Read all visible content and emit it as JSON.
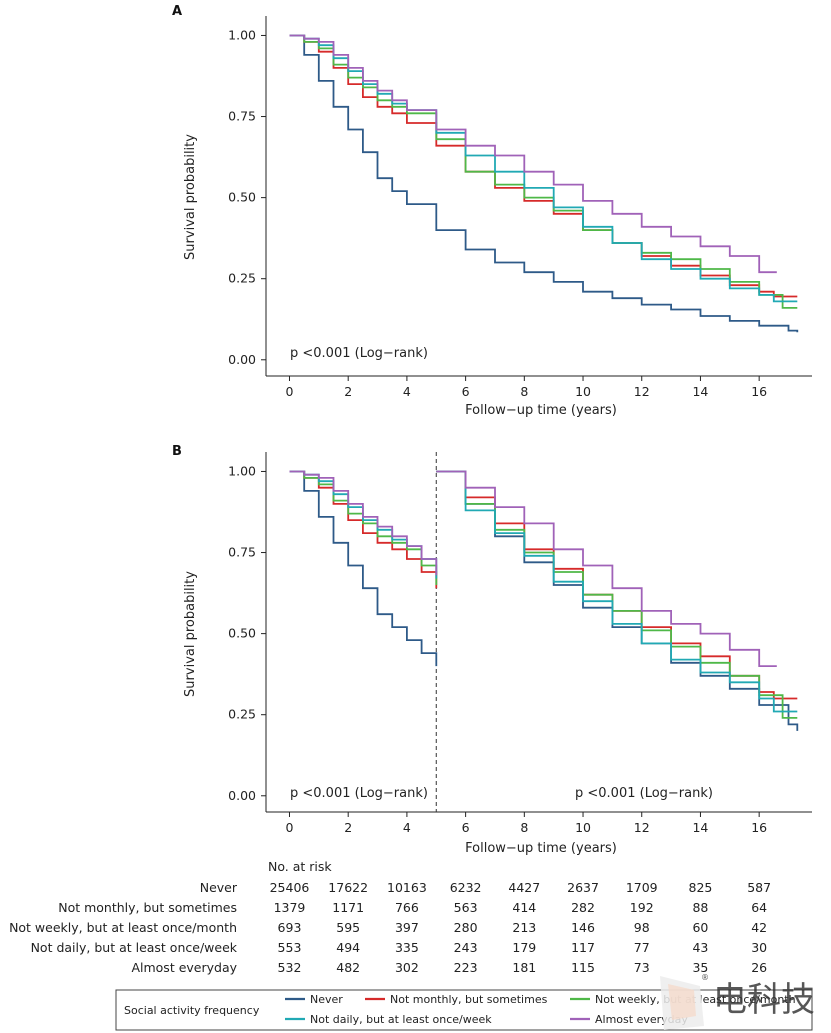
{
  "chart_data": [
    {
      "panel": "A",
      "type": "line",
      "xlabel": "Follow−up time (years)",
      "ylabel": "Survival probability",
      "xticks": [
        "0",
        "2",
        "4",
        "6",
        "8",
        "10",
        "12",
        "14",
        "16"
      ],
      "yticks": [
        "0.00",
        "0.25",
        "0.50",
        "0.75",
        "1.00"
      ],
      "xlim": [
        -0.8,
        17.8
      ],
      "ylim": [
        -0.05,
        1.06
      ],
      "annotation": "p <0.001 (Log−rank)",
      "series": [
        {
          "name": "Never",
          "color": "#2e5a88",
          "x": [
            0,
            0.5,
            1,
            1.5,
            2,
            2.5,
            3,
            3.5,
            4,
            5,
            6,
            7,
            8,
            9,
            10,
            11,
            12,
            13,
            14,
            15,
            16,
            17,
            17.3
          ],
          "y": [
            1.0,
            0.94,
            0.86,
            0.78,
            0.71,
            0.64,
            0.56,
            0.52,
            0.48,
            0.4,
            0.34,
            0.3,
            0.27,
            0.24,
            0.21,
            0.19,
            0.17,
            0.155,
            0.135,
            0.12,
            0.105,
            0.09,
            0.085
          ]
        },
        {
          "name": "Not monthly, but sometimes",
          "color": "#d62a2a",
          "x": [
            0,
            0.5,
            1,
            1.5,
            2,
            2.5,
            3,
            3.5,
            4,
            5,
            6,
            7,
            8,
            9,
            10,
            11,
            12,
            13,
            14,
            15,
            16,
            16.5,
            17.3
          ],
          "y": [
            1.0,
            0.98,
            0.95,
            0.9,
            0.85,
            0.81,
            0.78,
            0.76,
            0.73,
            0.66,
            0.58,
            0.53,
            0.49,
            0.45,
            0.4,
            0.36,
            0.32,
            0.29,
            0.26,
            0.23,
            0.21,
            0.195,
            0.195
          ]
        },
        {
          "name": "Not weekly, but at least once/month",
          "color": "#4fb848",
          "x": [
            0,
            0.5,
            1,
            1.5,
            2,
            2.5,
            3,
            3.5,
            4,
            5,
            6,
            7,
            8,
            9,
            10,
            11,
            12,
            13,
            14,
            15,
            16,
            16.8,
            17.3
          ],
          "y": [
            1.0,
            0.98,
            0.96,
            0.91,
            0.87,
            0.84,
            0.8,
            0.78,
            0.76,
            0.68,
            0.58,
            0.54,
            0.5,
            0.46,
            0.4,
            0.36,
            0.33,
            0.31,
            0.28,
            0.24,
            0.2,
            0.16,
            0.16
          ]
        },
        {
          "name": "Not daily, but at least once/week",
          "color": "#21a9b4",
          "x": [
            0,
            0.5,
            1,
            1.5,
            2,
            2.5,
            3,
            3.5,
            4,
            5,
            6,
            7,
            8,
            9,
            10,
            11,
            12,
            13,
            14,
            15,
            16,
            16.5,
            17.3
          ],
          "y": [
            1.0,
            0.99,
            0.97,
            0.93,
            0.89,
            0.85,
            0.82,
            0.79,
            0.77,
            0.7,
            0.63,
            0.58,
            0.53,
            0.47,
            0.41,
            0.36,
            0.31,
            0.28,
            0.25,
            0.22,
            0.2,
            0.18,
            0.18
          ]
        },
        {
          "name": "Almost everyday",
          "color": "#a062b8",
          "x": [
            0,
            0.5,
            1,
            1.5,
            2,
            2.5,
            3,
            3.5,
            4,
            5,
            6,
            7,
            8,
            9,
            10,
            11,
            12,
            13,
            14,
            15,
            16,
            16.6
          ],
          "y": [
            1.0,
            0.99,
            0.98,
            0.94,
            0.9,
            0.86,
            0.83,
            0.8,
            0.77,
            0.71,
            0.66,
            0.63,
            0.58,
            0.54,
            0.49,
            0.45,
            0.41,
            0.38,
            0.35,
            0.32,
            0.27,
            0.27
          ]
        }
      ]
    },
    {
      "panel": "B",
      "type": "line",
      "xlabel": "Follow−up time (years)",
      "ylabel": "Survival probability",
      "xticks": [
        "0",
        "2",
        "4",
        "6",
        "8",
        "10",
        "12",
        "14",
        "16"
      ],
      "yticks": [
        "0.00",
        "0.25",
        "0.50",
        "0.75",
        "1.00"
      ],
      "xlim": [
        -0.8,
        17.8
      ],
      "ylim": [
        -0.05,
        1.06
      ],
      "cut_x": 5,
      "annotations": [
        "p <0.001 (Log−rank)",
        "p <0.001 (Log−rank)"
      ],
      "series": [
        {
          "name": "Never",
          "color": "#2e5a88",
          "seg1": {
            "x": [
              0,
              0.5,
              1,
              1.5,
              2,
              2.5,
              3,
              3.5,
              4,
              4.5,
              5
            ],
            "y": [
              1.0,
              0.94,
              0.86,
              0.78,
              0.71,
              0.64,
              0.56,
              0.52,
              0.48,
              0.44,
              0.4
            ]
          },
          "seg2": {
            "x": [
              5,
              6,
              7,
              8,
              9,
              10,
              11,
              12,
              13,
              14,
              15,
              16,
              17,
              17.3
            ],
            "y": [
              1.0,
              0.9,
              0.8,
              0.72,
              0.65,
              0.58,
              0.52,
              0.47,
              0.41,
              0.37,
              0.33,
              0.28,
              0.22,
              0.2
            ]
          }
        },
        {
          "name": "Not monthly, but sometimes",
          "color": "#d62a2a",
          "seg1": {
            "x": [
              0,
              0.5,
              1,
              1.5,
              2,
              2.5,
              3,
              3.5,
              4,
              4.5,
              5
            ],
            "y": [
              1.0,
              0.98,
              0.95,
              0.9,
              0.85,
              0.81,
              0.78,
              0.76,
              0.73,
              0.69,
              0.64
            ]
          },
          "seg2": {
            "x": [
              5,
              6,
              7,
              8,
              9,
              10,
              11,
              12,
              13,
              14,
              15,
              16,
              16.5,
              17.3
            ],
            "y": [
              1.0,
              0.92,
              0.84,
              0.76,
              0.7,
              0.62,
              0.57,
              0.52,
              0.47,
              0.43,
              0.37,
              0.32,
              0.3,
              0.3
            ]
          }
        },
        {
          "name": "Not weekly, but at least once/month",
          "color": "#4fb848",
          "seg1": {
            "x": [
              0,
              0.5,
              1,
              1.5,
              2,
              2.5,
              3,
              3.5,
              4,
              4.5,
              5
            ],
            "y": [
              1.0,
              0.98,
              0.96,
              0.91,
              0.87,
              0.84,
              0.8,
              0.78,
              0.76,
              0.71,
              0.65
            ]
          },
          "seg2": {
            "x": [
              5,
              6,
              7,
              8,
              9,
              10,
              11,
              12,
              13,
              14,
              15,
              16,
              16.8,
              17.3
            ],
            "y": [
              1.0,
              0.9,
              0.82,
              0.75,
              0.69,
              0.62,
              0.57,
              0.51,
              0.46,
              0.41,
              0.37,
              0.31,
              0.24,
              0.24
            ]
          }
        },
        {
          "name": "Not daily, but at least once/week",
          "color": "#21a9b4",
          "seg1": {
            "x": [
              0,
              0.5,
              1,
              1.5,
              2,
              2.5,
              3,
              3.5,
              4,
              4.5,
              5
            ],
            "y": [
              1.0,
              0.99,
              0.97,
              0.93,
              0.89,
              0.85,
              0.82,
              0.79,
              0.77,
              0.73,
              0.67
            ]
          },
          "seg2": {
            "x": [
              5,
              6,
              7,
              8,
              9,
              10,
              11,
              12,
              13,
              14,
              15,
              16,
              16.5,
              17.3
            ],
            "y": [
              1.0,
              0.88,
              0.81,
              0.74,
              0.66,
              0.6,
              0.53,
              0.47,
              0.42,
              0.38,
              0.35,
              0.3,
              0.26,
              0.26
            ]
          }
        },
        {
          "name": "Almost everyday",
          "color": "#a062b8",
          "seg1": {
            "x": [
              0,
              0.5,
              1,
              1.5,
              2,
              2.5,
              3,
              3.5,
              4,
              4.5,
              5
            ],
            "y": [
              1.0,
              0.99,
              0.98,
              0.94,
              0.9,
              0.86,
              0.83,
              0.8,
              0.77,
              0.73,
              0.68
            ]
          },
          "seg2": {
            "x": [
              5,
              6,
              7,
              8,
              9,
              10,
              11,
              12,
              13,
              14,
              15,
              16,
              16.6
            ],
            "y": [
              1.0,
              0.95,
              0.89,
              0.84,
              0.76,
              0.71,
              0.64,
              0.57,
              0.53,
              0.5,
              0.45,
              0.4,
              0.4
            ]
          }
        }
      ]
    }
  ],
  "risk_table": {
    "title": "No. at risk",
    "rows": [
      {
        "label": "Never",
        "values": [
          "25406",
          "17622",
          "10163",
          "6232",
          "4427",
          "2637",
          "1709",
          "825",
          "587"
        ]
      },
      {
        "label": "Not monthly, but sometimes",
        "values": [
          "1379",
          "1171",
          "766",
          "563",
          "414",
          "282",
          "192",
          "88",
          "64"
        ]
      },
      {
        "label": "Not weekly, but at least once/month",
        "values": [
          "693",
          "595",
          "397",
          "280",
          "213",
          "146",
          "98",
          "60",
          "42"
        ]
      },
      {
        "label": "Not daily, but at least once/week",
        "values": [
          "553",
          "494",
          "335",
          "243",
          "179",
          "117",
          "77",
          "43",
          "30"
        ]
      },
      {
        "label": "Almost everyday",
        "values": [
          "532",
          "482",
          "302",
          "223",
          "181",
          "115",
          "73",
          "35",
          "26"
        ]
      }
    ]
  },
  "legend": {
    "title": "Social activity frequency",
    "items": [
      {
        "label": "Never",
        "color": "#2e5a88"
      },
      {
        "label": "Not monthly, but sometimes",
        "color": "#d62a2a"
      },
      {
        "label": "Not weekly, but at least once/month",
        "color": "#4fb848"
      },
      {
        "label": "Not daily, but at least once/week",
        "color": "#21a9b4"
      },
      {
        "label": "Almost everyday",
        "color": "#a062b8"
      }
    ]
  },
  "watermark": {
    "text": "电科技",
    "mark": "®"
  }
}
